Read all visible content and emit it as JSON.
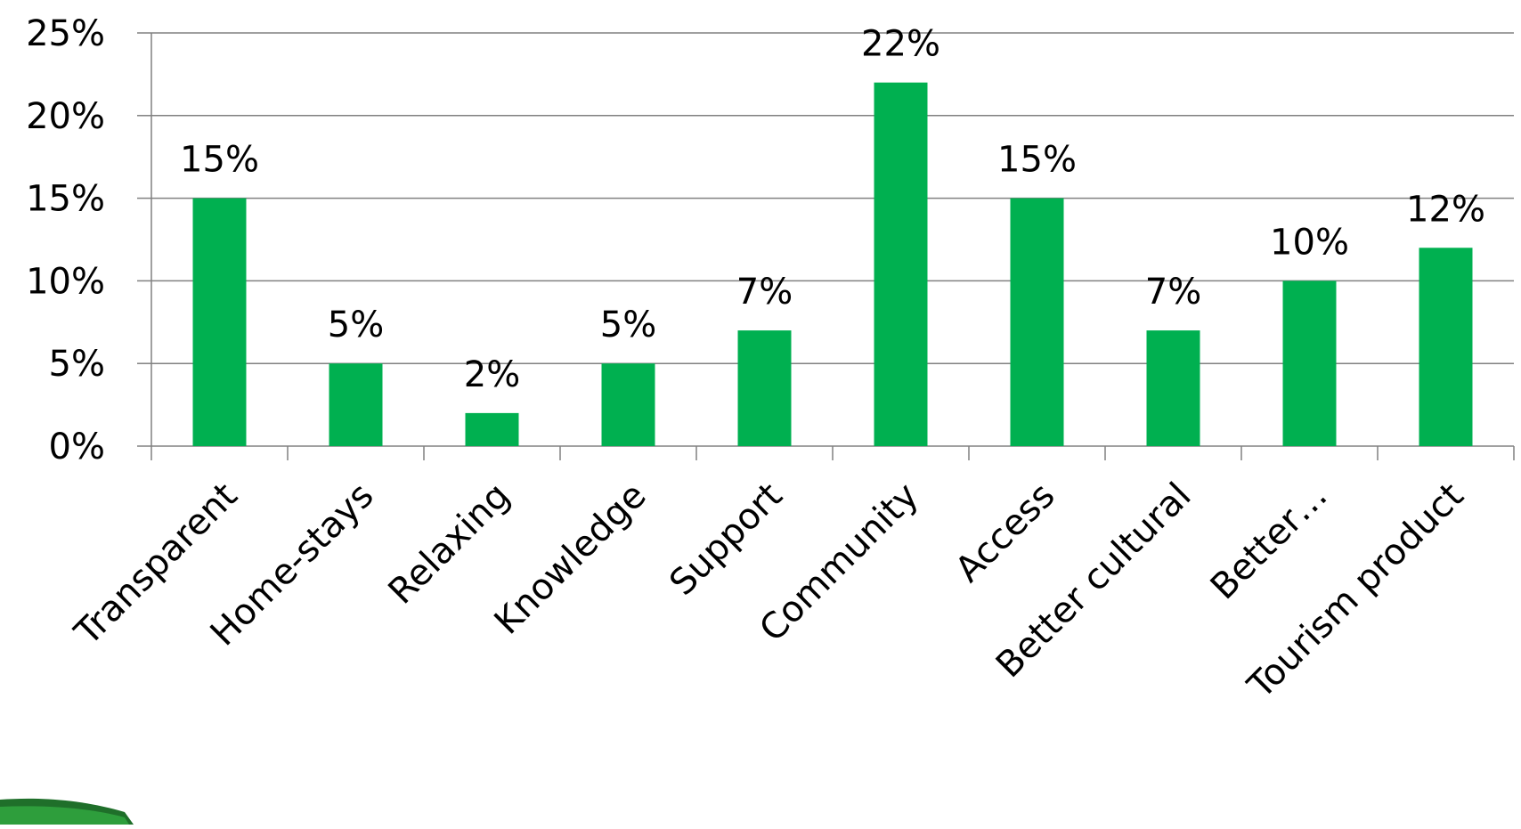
{
  "chart_data": {
    "type": "bar",
    "title": "",
    "xlabel": "",
    "ylabel": "",
    "categories": [
      "Transparent",
      "Home-stays",
      "Relaxing",
      "Knowledge",
      "Support",
      "Community",
      "Access",
      "Better cultural",
      "Better…",
      "Tourism product"
    ],
    "values": [
      15,
      5,
      2,
      5,
      7,
      22,
      15,
      7,
      10,
      12
    ],
    "data_labels": [
      "15%",
      "5%",
      "2%",
      "5%",
      "7%",
      "22%",
      "15%",
      "7%",
      "10%",
      "12%"
    ],
    "ylim": [
      0,
      25
    ],
    "yticks": [
      0,
      5,
      10,
      15,
      20,
      25
    ],
    "ytick_labels": [
      "0%",
      "5%",
      "10%",
      "15%",
      "20%",
      "25%"
    ],
    "grid": true,
    "legend": "none",
    "bar_color": "#00B050",
    "gridline_color": "#808080",
    "axis_color": "#808080"
  }
}
